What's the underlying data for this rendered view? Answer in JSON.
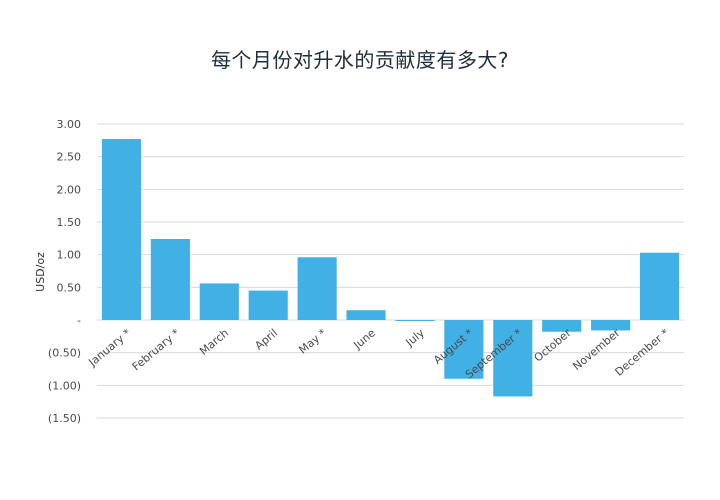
{
  "chart_data": {
    "type": "bar",
    "title": "每个月份对升水的贡献度有多大?",
    "xlabel": "",
    "ylabel": "USD/oz",
    "categories": [
      "January *",
      "February *",
      "March",
      "April",
      "May *",
      "June",
      "July",
      "August *",
      "September *",
      "October",
      "November",
      "December *"
    ],
    "values": [
      2.77,
      1.24,
      0.56,
      0.45,
      0.96,
      0.15,
      -0.01,
      -0.9,
      -1.17,
      -0.18,
      -0.16,
      1.03
    ],
    "ylim": [
      -1.5,
      3.0
    ],
    "yticks": [
      3.0,
      2.5,
      2.0,
      1.5,
      1.0,
      0.5,
      0.0,
      -0.5,
      -1.0,
      -1.5
    ],
    "ytick_labels": [
      "3.00",
      "2.50",
      "2.00",
      "1.50",
      "1.00",
      "0.50",
      "-",
      "(0.50)",
      "(1.00)",
      "(1.50)"
    ],
    "grid": true,
    "bar_color": "#41b0e4"
  }
}
